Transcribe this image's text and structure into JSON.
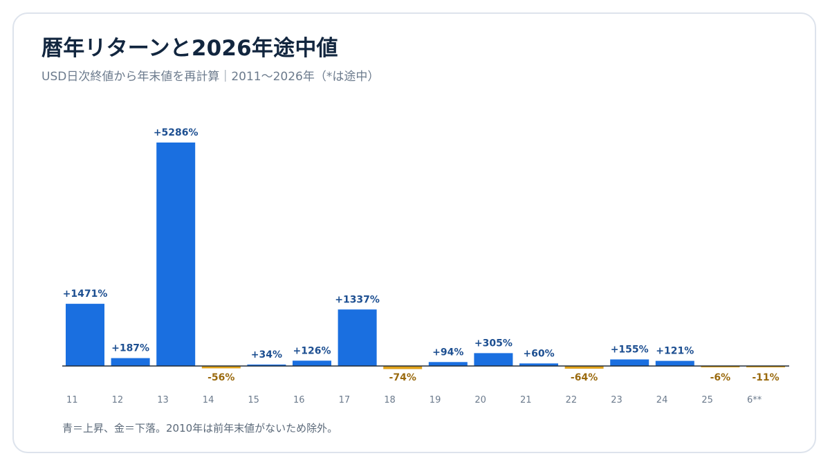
{
  "header": {
    "title": "暦年リターンと2026年途中値",
    "subtitle": "USD日次終値から年末値を再計算｜2011〜2026年（*は途中）"
  },
  "footnote": "青＝上昇、金＝下落。2010年は前年末値がないため除外。",
  "colors": {
    "up_bar": "#1a6fe0",
    "up_label": "#1d4f91",
    "down_bar": "#e0a21a",
    "down_label": "#9a6a0e",
    "axis": "#1f2a37",
    "tick_text": "#6b7a8c"
  },
  "chart_data": {
    "type": "bar",
    "title": "暦年リターンと2026年途中値",
    "categories": [
      "11",
      "12",
      "13",
      "14",
      "15",
      "16",
      "17",
      "18",
      "19",
      "20",
      "21",
      "22",
      "23",
      "24",
      "25",
      "6**"
    ],
    "values": [
      1471,
      187,
      5286,
      -56,
      34,
      126,
      1337,
      -74,
      94,
      305,
      60,
      -64,
      155,
      121,
      -6,
      -11
    ],
    "value_labels": [
      "+1471%",
      "+187%",
      "+5286%",
      "-56%",
      "+34%",
      "+126%",
      "+1337%",
      "-74%",
      "+94%",
      "+305%",
      "+60%",
      "-64%",
      "+155%",
      "+121%",
      "-6%",
      "-11%"
    ],
    "unit": "%",
    "grid": false,
    "legend": "none"
  }
}
